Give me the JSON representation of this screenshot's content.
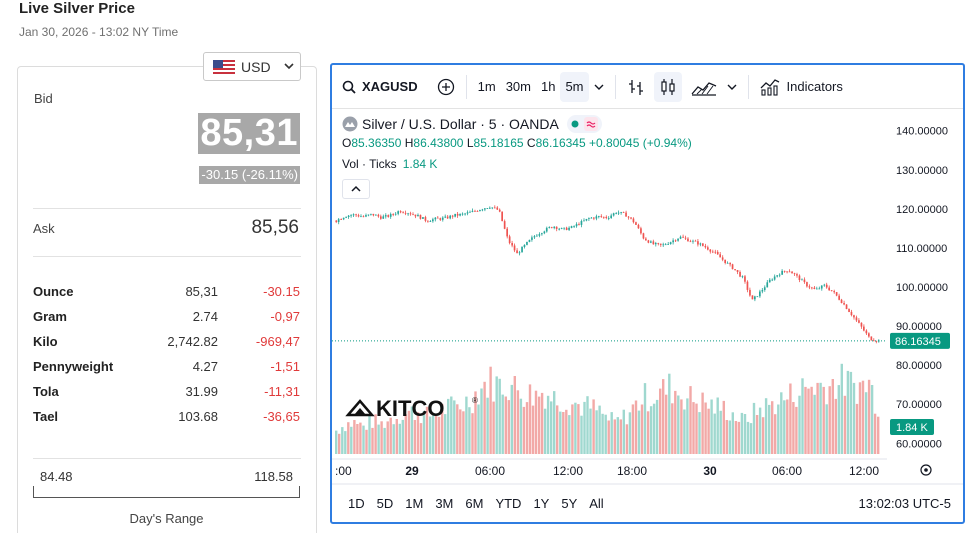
{
  "page": {
    "title": "Live Silver Price",
    "time": "Jan 30, 2026 - 13:02 NY Time"
  },
  "currency": {
    "selected": "USD",
    "flag_icon": "us-flag-icon"
  },
  "quote": {
    "bid_label": "Bid",
    "bid": "85,31",
    "change": "-30.15 (-26.11%)",
    "ask_label": "Ask",
    "ask": "85,56"
  },
  "units": [
    {
      "name": "Ounce",
      "price": "85,31",
      "change": "-30.15"
    },
    {
      "name": "Gram",
      "price": "2.74",
      "change": "-0,97"
    },
    {
      "name": "Kilo",
      "price": "2,742.82",
      "change": "-969,47"
    },
    {
      "name": "Pennyweight",
      "price": "4.27",
      "change": "-1,51"
    },
    {
      "name": "Tola",
      "price": "31.99",
      "change": "-11,31"
    },
    {
      "name": "Tael",
      "price": "103.68",
      "change": "-36,65"
    }
  ],
  "days_range": {
    "low": "84.48",
    "high": "118.58",
    "label": "Day's Range"
  },
  "chart": {
    "toolbar": {
      "symbol": "XAGUSD",
      "intervals": [
        "1m",
        "30m",
        "1h",
        "5m"
      ],
      "active_interval": "5m",
      "indicators_label": "Indicators"
    },
    "legend": {
      "title": "Silver / U.S. Dollar · 5 · OANDA",
      "o_label": "O",
      "o": "85.36350",
      "h_label": "H",
      "h": "86.43800",
      "l_label": "L",
      "l": "85.18165",
      "c_label": "C",
      "c": "86.16345",
      "change": "+0.80045 (+0.94%)",
      "vol_label": "Vol · Ticks",
      "vol": "1.84 K"
    },
    "watermark": "KITCO",
    "time_ticks": [
      ":00",
      "29",
      "06:00",
      "12:00",
      "18:00",
      "30",
      "06:00",
      "12:00"
    ],
    "range_buttons": [
      "1D",
      "5D",
      "1M",
      "3M",
      "6M",
      "YTD",
      "1Y",
      "5Y",
      "All"
    ],
    "clock": "13:02:03 UTC-5",
    "colors": {
      "up": "#26a69a",
      "down": "#ef5350",
      "accent": "#2f7de1"
    }
  },
  "chart_data": {
    "type": "line",
    "title": "Silver / U.S. Dollar · 5 · OANDA",
    "xlabel": "",
    "ylabel": "",
    "y_ticks": [
      140,
      130,
      120,
      110,
      100,
      90,
      80,
      70,
      60
    ],
    "ylim": [
      57,
      143
    ],
    "x_ticks": [
      ":00",
      "29",
      "06:00",
      "12:00",
      "18:00",
      "30",
      "06:00",
      "12:00"
    ],
    "last_price_label": "86.16345",
    "volume_label": "1.84 K",
    "series": [
      {
        "values": [
          117.0,
          118.2,
          118.5,
          118.0,
          118.6,
          117.8,
          118.3,
          119.5,
          119.0,
          118.2,
          117.0,
          117.4,
          117.6,
          118.3,
          118.6,
          119.2,
          120.0,
          120.6,
          119.6,
          112.0,
          108.5,
          111.0,
          113.2,
          114.5,
          115.6,
          114.7,
          115.2,
          116.4,
          117.6,
          118.0,
          117.8,
          119.2,
          118.5,
          116.5,
          112.5,
          111.0,
          110.6,
          111.6,
          112.8,
          112.0,
          111.2,
          110.0,
          108.5,
          106.5,
          104.6,
          102.2,
          96.5,
          99.0,
          101.8,
          103.5,
          104.4,
          102.6,
          100.5,
          99.2,
          100.4,
          98.6,
          96.0,
          93.0,
          90.0,
          86.8,
          86.2
        ]
      }
    ],
    "volume": {
      "values": [
        0.3,
        0.38,
        0.4,
        0.35,
        0.42,
        0.38,
        0.45,
        0.5,
        0.52,
        0.55,
        0.48,
        0.52,
        0.58,
        0.6,
        0.64,
        0.7,
        0.85,
        0.92,
        0.88,
        0.9,
        0.82,
        0.78,
        0.75,
        0.8,
        0.72,
        0.7,
        0.66,
        0.62,
        0.6,
        0.55,
        0.45,
        0.4,
        0.48,
        0.6,
        0.72,
        0.74,
        0.8,
        0.85,
        0.78,
        0.72,
        0.68,
        0.64,
        0.6,
        0.58,
        0.5,
        0.42,
        0.5,
        0.58,
        0.62,
        0.68,
        0.72,
        0.8,
        0.84,
        0.88,
        0.86,
        0.9,
        0.92,
        0.88,
        0.86,
        0.9,
        0.6
      ]
    }
  }
}
